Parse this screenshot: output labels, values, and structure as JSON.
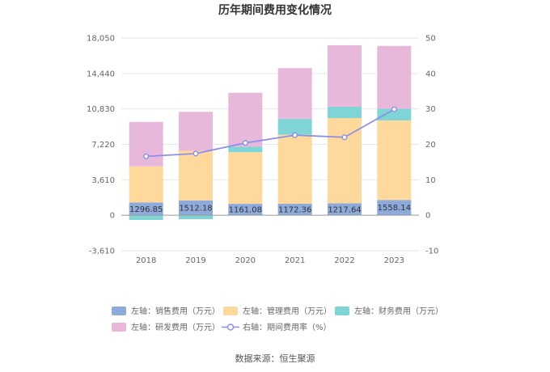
{
  "chart_data": {
    "type": "bar",
    "title": "历年期间费用变化情况",
    "categories": [
      "2018",
      "2019",
      "2020",
      "2021",
      "2022",
      "2023"
    ],
    "left_axis": {
      "ticks": [
        "-3,610",
        "0",
        "3,610",
        "7,220",
        "10,830",
        "14,440",
        "18,050"
      ],
      "ylim": [
        -3610,
        18050
      ]
    },
    "right_axis": {
      "ticks": [
        "-10",
        "0",
        "10",
        "20",
        "30",
        "40",
        "50"
      ],
      "ylim": [
        -10,
        50
      ]
    },
    "series": [
      {
        "name": "左轴：销售费用（万元）",
        "type": "bar",
        "axis": "left",
        "color": "#8eaadb",
        "values": [
          1296.85,
          1512.18,
          1161.08,
          1172.36,
          1217.64,
          1558.14
        ],
        "labels": [
          "1296.85",
          "1512.18",
          "1161.08",
          "1172.36",
          "1217.64",
          "1558.14"
        ]
      },
      {
        "name": "左轴：管理费用（万元）",
        "type": "bar",
        "axis": "left",
        "color": "#ffd99b",
        "values": [
          3680,
          5050,
          5260,
          7030,
          8680,
          8100
        ]
      },
      {
        "name": "左轴：财务费用（万元）",
        "type": "bar",
        "axis": "left",
        "color": "#7fd5d5",
        "values": [
          -480,
          -400,
          560,
          1620,
          1160,
          1180
        ]
      },
      {
        "name": "左轴：研发费用（万元）",
        "type": "bar",
        "axis": "left",
        "color": "#e8b8db",
        "values": [
          4530,
          3970,
          5490,
          5160,
          6260,
          6410
        ]
      },
      {
        "name": "右轴：期间费用率（%）",
        "type": "line",
        "axis": "right",
        "color": "#8b8fe8",
        "values": [
          16.6,
          17.4,
          20.4,
          22.6,
          22.0,
          29.9
        ]
      }
    ]
  },
  "source": "数据来源：恒生聚源"
}
